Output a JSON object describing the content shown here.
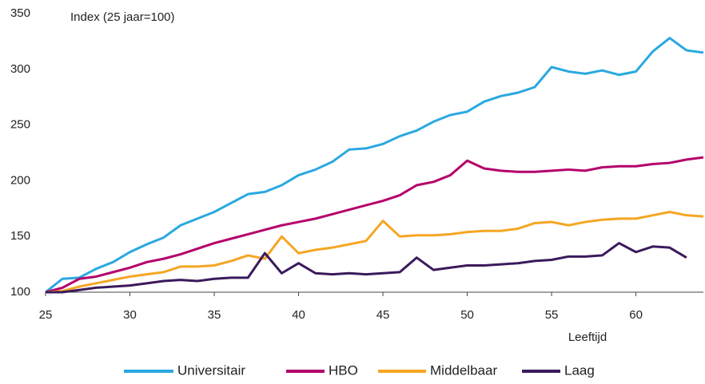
{
  "chart_data": {
    "type": "line",
    "ylabel": "Index (25 jaar=100)",
    "xlabel": "Leeftijd",
    "x": [
      25,
      26,
      27,
      28,
      29,
      30,
      31,
      32,
      33,
      34,
      35,
      36,
      37,
      38,
      39,
      40,
      41,
      42,
      43,
      44,
      45,
      46,
      47,
      48,
      49,
      50,
      51,
      52,
      53,
      54,
      55,
      56,
      57,
      58,
      59,
      60,
      61,
      62,
      63,
      64
    ],
    "series": [
      {
        "name": "Universitair",
        "color": "#2aa8e0",
        "values": [
          100,
          112,
          113,
          121,
          127,
          136,
          143,
          149,
          160,
          166,
          172,
          180,
          188,
          190,
          196,
          205,
          210,
          217,
          228,
          229,
          233,
          240,
          245,
          253,
          259,
          262,
          271,
          276,
          279,
          284,
          302,
          298,
          296,
          299,
          295,
          298,
          316,
          328,
          317,
          315
        ]
      },
      {
        "name": "HBO",
        "color": "#b4006b",
        "values": [
          100,
          104,
          112,
          114,
          118,
          122,
          127,
          130,
          134,
          139,
          144,
          148,
          152,
          156,
          160,
          163,
          166,
          170,
          174,
          178,
          182,
          187,
          196,
          199,
          205,
          218,
          211,
          209,
          208,
          208,
          209,
          210,
          209,
          212,
          213,
          213,
          215,
          216,
          219,
          221
        ]
      },
      {
        "name": "Middelbaar",
        "color": "#f5a623",
        "values": [
          100,
          101,
          105,
          108,
          111,
          114,
          116,
          118,
          123,
          123,
          124,
          128,
          133,
          130,
          150,
          135,
          138,
          140,
          143,
          146,
          164,
          150,
          151,
          151,
          152,
          154,
          155,
          155,
          157,
          162,
          163,
          160,
          163,
          165,
          166,
          166,
          169,
          172,
          169,
          168
        ]
      },
      {
        "name": "Laag",
        "color": "#3b1a5c",
        "values": [
          100,
          100,
          102,
          104,
          105,
          106,
          108,
          110,
          111,
          110,
          112,
          113,
          113,
          135,
          117,
          126,
          117,
          116,
          117,
          116,
          117,
          118,
          131,
          120,
          122,
          124,
          124,
          125,
          126,
          128,
          129,
          132,
          132,
          133,
          144,
          136,
          141,
          140,
          131,
          null
        ]
      }
    ],
    "xlim": [
      25,
      64
    ],
    "xticks": [
      25,
      30,
      35,
      40,
      45,
      50,
      55,
      60
    ],
    "ylim": [
      100,
      350
    ],
    "yticks": [
      100,
      150,
      200,
      250,
      300,
      350
    ],
    "legend": "bottom"
  }
}
